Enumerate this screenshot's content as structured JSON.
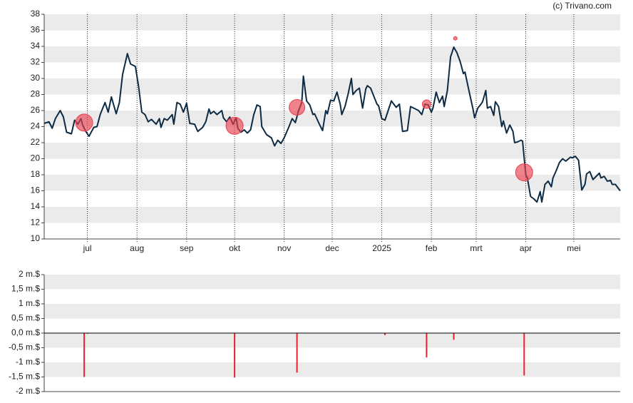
{
  "credit": "(c) Trivano.com",
  "chart_data": [
    {
      "type": "line",
      "xlim": [
        -27,
        333
      ],
      "xticks": [
        {
          "value": 0,
          "label": "jul"
        },
        {
          "value": 31,
          "label": "aug"
        },
        {
          "value": 62,
          "label": "sep"
        },
        {
          "value": 92,
          "label": "okt"
        },
        {
          "value": 123,
          "label": "nov"
        },
        {
          "value": 153,
          "label": "dec"
        },
        {
          "value": 184,
          "label": "2025"
        },
        {
          "value": 215,
          "label": "feb"
        },
        {
          "value": 243,
          "label": "mrt"
        },
        {
          "value": 274,
          "label": "apr"
        },
        {
          "value": 304,
          "label": "mei"
        }
      ],
      "ylim": [
        10,
        38
      ],
      "yticks": [
        10,
        12,
        14,
        16,
        18,
        20,
        22,
        24,
        26,
        28,
        30,
        32,
        34,
        36,
        38
      ],
      "grid": true,
      "x": [
        -27,
        -24,
        -22,
        -20,
        -17,
        -15,
        -13,
        -10,
        -8,
        -6,
        -4,
        -3,
        -1,
        1,
        4,
        6,
        8,
        11,
        13,
        15,
        18,
        20,
        22,
        25,
        27,
        30,
        32,
        34,
        36,
        38,
        40,
        43,
        45,
        46,
        48,
        50,
        53,
        54,
        56,
        58,
        60,
        62,
        64,
        67,
        69,
        72,
        74,
        76,
        77,
        79,
        81,
        84,
        85,
        87,
        89,
        91,
        93,
        94,
        96,
        98,
        100,
        102,
        104,
        106,
        108,
        109,
        112,
        115,
        117,
        119,
        121,
        123,
        126,
        128,
        130,
        132,
        134,
        135,
        137,
        139,
        141,
        142,
        145,
        147,
        149,
        150,
        152,
        154,
        156,
        158,
        159,
        161,
        163,
        165,
        166,
        168,
        170,
        172,
        174,
        175,
        177,
        179,
        181,
        182,
        184,
        186,
        188,
        190,
        193,
        195,
        197,
        200,
        202,
        205,
        207,
        209,
        211,
        213,
        215,
        216,
        218,
        220,
        222,
        223,
        225,
        227,
        229,
        231,
        233,
        235,
        236,
        239,
        241,
        242,
        244,
        246,
        247,
        249,
        250,
        252,
        254,
        255,
        257,
        259,
        260,
        262,
        264,
        266,
        267,
        269,
        271,
        272,
        274,
        275,
        277,
        279,
        281,
        283,
        284,
        286,
        288,
        290,
        291,
        293,
        295,
        297,
        299,
        302,
        303,
        305,
        307,
        309,
        311,
        312,
        314,
        316,
        318,
        320,
        321,
        323,
        325,
        327,
        328,
        330,
        333
      ],
      "series": [
        {
          "color": "#0d2b45",
          "values": [
            24.4,
            24.6,
            23.8,
            25,
            26,
            25.2,
            23.3,
            23.1,
            24.8,
            24.3,
            25,
            24.2,
            23.4,
            22.8,
            23.9,
            24,
            25.5,
            27,
            25.8,
            27.7,
            25.6,
            27,
            30.5,
            33.1,
            31.8,
            31.5,
            29,
            25.8,
            25.5,
            24.6,
            24.9,
            24.3,
            25,
            23.9,
            25,
            24.8,
            25.5,
            24.3,
            27,
            26.8,
            25.8,
            26.9,
            24.4,
            24.3,
            23.4,
            23.9,
            24.6,
            26.2,
            25.6,
            25.9,
            25.5,
            26,
            25.1,
            24.6,
            25.2,
            24.3,
            25.1,
            23.8,
            23.3,
            23.6,
            23.2,
            23.6,
            25.5,
            26.7,
            26.5,
            24,
            23,
            22.6,
            21.6,
            22.3,
            21.9,
            22.6,
            24,
            25,
            24.5,
            26,
            27,
            30.3,
            27.2,
            26.7,
            25.5,
            25.6,
            24.3,
            23.5,
            26,
            25.6,
            27.3,
            27.2,
            28.3,
            26.8,
            25.5,
            26.5,
            28.1,
            30,
            28,
            28.5,
            28.8,
            26.3,
            28.7,
            29.1,
            28.8,
            27.8,
            26.8,
            26.6,
            25,
            24.8,
            26,
            27.2,
            26.4,
            26.8,
            23.4,
            23.5,
            26.5,
            26.2,
            26,
            25.5,
            26.8,
            26.7,
            25.8,
            26.3,
            28.3,
            27,
            27.8,
            26.5,
            28.5,
            32.7,
            33.9,
            33.2,
            32.1,
            30.6,
            30.8,
            28,
            26.2,
            25.1,
            26.3,
            26.8,
            27.1,
            28.5,
            26.3,
            26.5,
            25.4,
            27.1,
            26.5,
            24,
            24.7,
            23.2,
            24.2,
            23.4,
            22,
            22.1,
            22.3,
            22.2,
            18,
            17.6,
            15.3,
            15,
            14.6,
            15.9,
            14.6,
            16.8,
            17.2,
            16.5,
            17.6,
            18.5,
            19.5,
            20,
            19.7,
            20.2,
            20.1,
            20.3,
            19.8,
            16.1,
            16.8,
            18.1,
            18.4,
            17.4,
            17.8,
            18.2,
            17.6,
            17.8,
            17.2,
            17.3,
            16.8,
            16.8,
            16
          ]
        }
      ],
      "markers": {
        "color": "#e8414f",
        "x": [
          -2,
          92,
          131,
          212,
          230,
          273
        ],
        "values": [
          24.5,
          24.1,
          26.4,
          26.8,
          35,
          18.3
        ],
        "sizes": [
          12,
          12,
          11,
          6,
          2.5,
          12
        ]
      }
    },
    {
      "type": "bar",
      "xlim": [
        -27,
        333
      ],
      "ylim": [
        -2,
        2
      ],
      "yticks": [
        {
          "value": -2,
          "label": "-2 m.$"
        },
        {
          "value": -1.5,
          "label": "-1,5 m.$"
        },
        {
          "value": -1,
          "label": "-1 m.$"
        },
        {
          "value": -0.5,
          "label": "-0,5 m.$"
        },
        {
          "value": 0,
          "label": "0,0 m.$"
        },
        {
          "value": 0.5,
          "label": "0,5 m.$"
        },
        {
          "value": 1,
          "label": "1 m.$"
        },
        {
          "value": 1.5,
          "label": "1,5 m.$"
        },
        {
          "value": 2,
          "label": "2 m.$"
        }
      ],
      "grid": true,
      "color": "#e8212f",
      "x": [
        -2,
        0,
        92,
        131,
        186,
        212,
        229,
        273
      ],
      "values": [
        -1.5,
        -0.02,
        -1.52,
        -1.35,
        -0.07,
        -0.83,
        -0.23,
        -1.45
      ]
    }
  ]
}
